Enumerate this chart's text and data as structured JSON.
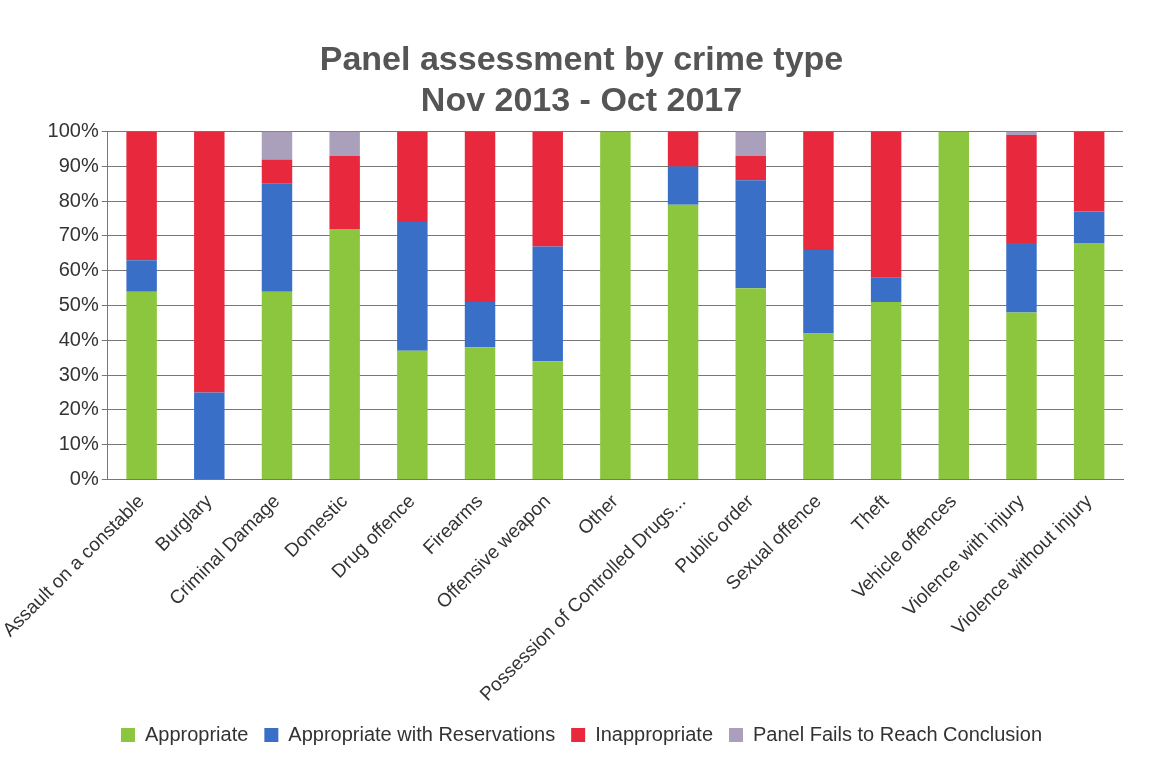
{
  "chart_data": {
    "type": "bar",
    "stacked": true,
    "title": "Panel assessment by crime type",
    "subtitle": "Nov 2013 - Oct 2017",
    "categories": [
      "Assault on a constable",
      "Burglary",
      "Criminal Damage",
      "Domestic",
      "Drug offence",
      "Firearms",
      "Offensive weapon",
      "Other",
      "Possession of Controlled Drugs...",
      "Public order",
      "Sexual offence",
      "Theft",
      "Vehicle offences",
      "Violence with injury",
      "Violence without injury"
    ],
    "series": [
      {
        "name": "Appropriate",
        "color": "#8cc63f",
        "values": [
          54,
          0,
          54,
          72,
          37,
          38,
          34,
          100,
          79,
          55,
          42,
          51,
          100,
          48,
          68
        ]
      },
      {
        "name": "Appropriate with Reservations",
        "color": "#3a6fc8",
        "values": [
          9,
          25,
          31,
          0,
          37,
          13,
          33,
          0,
          11,
          31,
          24,
          7,
          0,
          20,
          9
        ]
      },
      {
        "name": "Inappropriate",
        "color": "#e8283c",
        "values": [
          37,
          75,
          7,
          21,
          26,
          49,
          33,
          0,
          10,
          7,
          34,
          42,
          0,
          31,
          23
        ]
      },
      {
        "name": "Panel Fails to Reach Conclusion",
        "color": "#aaa0bc",
        "values": [
          0,
          0,
          8,
          7,
          0,
          0,
          0,
          0,
          0,
          7,
          0,
          0,
          0,
          1,
          0
        ]
      }
    ],
    "ylim": [
      0,
      100
    ],
    "yticks": [
      {
        "value": 0,
        "label": "0%"
      },
      {
        "value": 10,
        "label": "10%"
      },
      {
        "value": 20,
        "label": "20%"
      },
      {
        "value": 30,
        "label": "30%"
      },
      {
        "value": 40,
        "label": "40%"
      },
      {
        "value": 50,
        "label": "50%"
      },
      {
        "value": 60,
        "label": "60%"
      },
      {
        "value": 70,
        "label": "70%"
      },
      {
        "value": 80,
        "label": "80%"
      },
      {
        "value": 90,
        "label": "90%"
      },
      {
        "value": 100,
        "label": "100%"
      }
    ],
    "grid": "y",
    "legend": "bottom"
  }
}
